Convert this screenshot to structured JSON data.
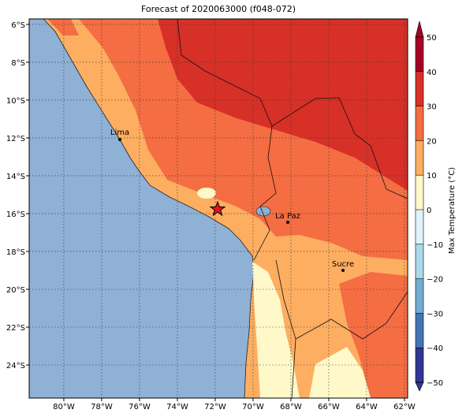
{
  "chart_data": {
    "type": "map",
    "title": "Forecast of 2020063000 (f048-072)",
    "xlim": [
      -81.83,
      -61.83
    ],
    "ylim": [
      -25.75,
      -5.71
    ],
    "xticks": [
      {
        "value": -80,
        "label": "80°W"
      },
      {
        "value": -78,
        "label": "78°W"
      },
      {
        "value": -76,
        "label": "76°W"
      },
      {
        "value": -74,
        "label": "74°W"
      },
      {
        "value": -72,
        "label": "72°W"
      },
      {
        "value": -70,
        "label": "70°W"
      },
      {
        "value": -68,
        "label": "68°W"
      },
      {
        "value": -66,
        "label": "66°W"
      },
      {
        "value": -64,
        "label": "64°W"
      },
      {
        "value": -62,
        "label": "62°W"
      }
    ],
    "yticks": [
      {
        "value": -6,
        "label": "6°S"
      },
      {
        "value": -8,
        "label": "8°S"
      },
      {
        "value": -10,
        "label": "10°S"
      },
      {
        "value": -12,
        "label": "12°S"
      },
      {
        "value": -14,
        "label": "14°S"
      },
      {
        "value": -16,
        "label": "16°S"
      },
      {
        "value": -18,
        "label": "18°S"
      },
      {
        "value": -20,
        "label": "20°S"
      },
      {
        "value": -22,
        "label": "22°S"
      },
      {
        "value": -24,
        "label": "24°S"
      }
    ],
    "grid": true,
    "cities": [
      "Lima",
      "La Paz",
      "Sucre"
    ],
    "colorbar": {
      "label": "Max Temperature (°C)",
      "lim": [
        -50,
        50
      ],
      "colors": [
        "#313695",
        "#4575b4",
        "#74add1",
        "#abd9e9",
        "#e0f3f8",
        "#fff8c8",
        "#fdae61",
        "#f46d43",
        "#d73027",
        "#a50026"
      ],
      "ticks": [
        {
          "value": -50,
          "label": "−50"
        },
        {
          "value": -40,
          "label": "−40"
        },
        {
          "value": -30,
          "label": "−30"
        },
        {
          "value": -20,
          "label": "−20"
        },
        {
          "value": -10,
          "label": "−10"
        },
        0,
        10,
        20,
        30,
        40,
        50
      ]
    }
  }
}
